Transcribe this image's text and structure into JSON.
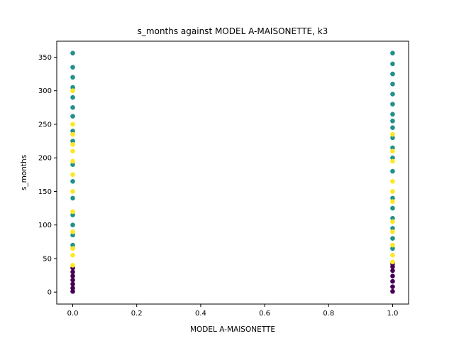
{
  "chart_data": {
    "type": "scatter",
    "title": "s_months against MODEL A-MAISONETTE, k3",
    "xlabel": "MODEL A-MAISONETTE",
    "ylabel": "s_months",
    "xlim": [
      -0.05,
      1.05
    ],
    "ylim": [
      -17.8,
      373.8
    ],
    "xticks": [
      0.0,
      0.2,
      0.4,
      0.6,
      0.8,
      1.0
    ],
    "xtick_labels": [
      "0.0",
      "0.2",
      "0.4",
      "0.6",
      "0.8",
      "1.0"
    ],
    "yticks": [
      0,
      50,
      100,
      150,
      200,
      250,
      300,
      350
    ],
    "ytick_labels": [
      "0",
      "50",
      "100",
      "150",
      "200",
      "250",
      "300",
      "350"
    ],
    "grid": false,
    "legend": "none",
    "colors": {
      "cluster_0": "#440154",
      "cluster_1": "#21918c",
      "cluster_2": "#fde725"
    },
    "series": [
      {
        "x": [
          0,
          0,
          0,
          0,
          0,
          0,
          0,
          1,
          1,
          1,
          1,
          1,
          1,
          1
        ],
        "y": [
          1,
          6,
          12,
          18,
          24,
          30,
          36,
          1,
          8,
          16,
          24,
          32,
          38,
          42
        ],
        "color_key": "cluster_0"
      },
      {
        "x": [
          0,
          0,
          0,
          0,
          0,
          0,
          0,
          0,
          0,
          0,
          0,
          0,
          0,
          0,
          0,
          0,
          1,
          1,
          1,
          1,
          1,
          1,
          1,
          1,
          1,
          1,
          1,
          1,
          1,
          1,
          1,
          1,
          1,
          1,
          1
        ],
        "y": [
          70,
          85,
          100,
          115,
          140,
          165,
          190,
          225,
          240,
          262,
          275,
          290,
          305,
          320,
          335,
          356,
          65,
          80,
          95,
          110,
          125,
          140,
          180,
          200,
          215,
          230,
          245,
          255,
          265,
          280,
          295,
          310,
          325,
          340,
          356
        ],
        "color_key": "cluster_1"
      },
      {
        "x": [
          0,
          0,
          0,
          0,
          0,
          0,
          0,
          0,
          0,
          0,
          0,
          0,
          0,
          1,
          1,
          1,
          1,
          1,
          1,
          1,
          1,
          1,
          1,
          1
        ],
        "y": [
          40,
          55,
          65,
          90,
          120,
          150,
          175,
          195,
          210,
          220,
          235,
          250,
          300,
          45,
          55,
          70,
          90,
          105,
          135,
          150,
          165,
          195,
          210,
          235
        ],
        "color_key": "cluster_2"
      }
    ]
  }
}
